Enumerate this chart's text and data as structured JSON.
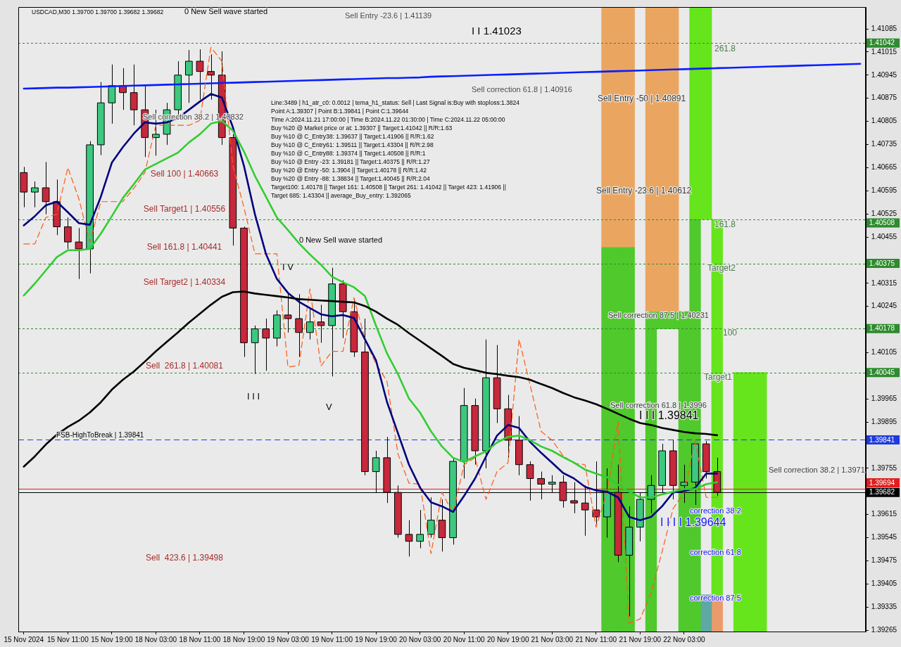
{
  "chart_data": {
    "type": "candlestick",
    "title": "USDCAD,M30 1.39700 1.39700 1.39682 1.39682",
    "categories": [
      "15 Nov 2024",
      null,
      null,
      null,
      "15 Nov 11:00",
      null,
      null,
      null,
      "15 Nov 19:00",
      null,
      null,
      null,
      "18 Nov 03:00",
      null,
      null,
      null,
      "18 Nov 11:00",
      null,
      null,
      null,
      "18 Nov 19:00",
      null,
      null,
      null,
      "19 Nov 03:00",
      null,
      null,
      null,
      "19 Nov 11:00",
      null,
      null,
      null,
      "19 Nov 19:00",
      null,
      null,
      null,
      "20 Nov 03:00",
      null,
      null,
      null,
      "20 Nov 11:00",
      null,
      null,
      null,
      "20 Nov 19:00",
      null,
      null,
      null,
      "21 Nov 03:00",
      null,
      null,
      null,
      "21 Nov 11:00",
      null,
      null,
      null,
      "21 Nov 19:00",
      null,
      null,
      null,
      "22 Nov 03:00",
      null,
      null,
      null,
      null,
      null,
      null,
      null,
      null,
      null,
      null,
      null,
      null,
      null,
      null,
      null,
      null
    ],
    "ohlc": [
      [
        1.4065,
        1.40667,
        1.40545,
        1.40591
      ],
      [
        1.40591,
        1.40623,
        1.40545,
        1.40604
      ],
      [
        1.40604,
        1.40682,
        1.40524,
        1.40562
      ],
      [
        1.40562,
        1.40629,
        1.40461,
        1.40486
      ],
      [
        1.40486,
        1.40514,
        1.40419,
        1.4044
      ],
      [
        1.4044,
        1.40482,
        1.40328,
        1.40419
      ],
      [
        1.40419,
        1.40745,
        1.40345,
        1.40734
      ],
      [
        1.40734,
        1.40924,
        1.40703,
        1.40861
      ],
      [
        1.40861,
        1.40977,
        1.40798,
        1.40913
      ],
      [
        1.40913,
        1.40966,
        1.4084,
        1.40892
      ],
      [
        1.40892,
        1.40977,
        1.40793,
        1.4084
      ],
      [
        1.4084,
        1.40913,
        1.40697,
        1.40756
      ],
      [
        1.40756,
        1.4084,
        1.40701,
        1.40766
      ],
      [
        1.40766,
        1.40861,
        1.40734,
        1.4084
      ],
      [
        1.4084,
        1.40987,
        1.40819,
        1.40945
      ],
      [
        1.40945,
        1.41021,
        1.40861,
        1.40987
      ],
      [
        1.40987,
        1.41023,
        1.40871,
        1.40956
      ],
      [
        1.40956,
        1.41008,
        1.40871,
        1.40945
      ],
      [
        1.40945,
        1.41017,
        1.40734,
        1.40756
      ],
      [
        1.40756,
        1.40766,
        1.40429,
        1.40482
      ],
      [
        1.40482,
        1.40486,
        1.40092,
        1.40135
      ],
      [
        1.40135,
        1.40187,
        1.4004,
        1.40177
      ],
      [
        1.40177,
        1.40208,
        1.4005,
        1.40149
      ],
      [
        1.40149,
        1.40233,
        1.40124,
        1.40219
      ],
      [
        1.40219,
        1.40286,
        1.40166,
        1.40208
      ],
      [
        1.40208,
        1.40282,
        1.40092,
        1.40166
      ],
      [
        1.40166,
        1.4024,
        1.40145,
        1.40198
      ],
      [
        1.40198,
        1.4025,
        1.40135,
        1.40187
      ],
      [
        1.40187,
        1.40362,
        1.40033,
        1.40313
      ],
      [
        1.40313,
        1.40324,
        1.40149,
        1.40229
      ],
      [
        1.40229,
        1.40265,
        1.40092,
        1.40107
      ],
      [
        1.40107,
        1.40208,
        1.39734,
        1.39745
      ],
      [
        1.39745,
        1.39808,
        1.39682,
        1.39787
      ],
      [
        1.39787,
        1.3985,
        1.3965,
        1.39682
      ],
      [
        1.39682,
        1.39703,
        1.39545,
        1.39555
      ],
      [
        1.39555,
        1.39598,
        1.39488,
        1.39534
      ],
      [
        1.39534,
        1.39629,
        1.39513,
        1.39555
      ],
      [
        1.39555,
        1.39667,
        1.39545,
        1.39598
      ],
      [
        1.39598,
        1.39661,
        1.39503,
        1.39545
      ],
      [
        1.39545,
        1.39787,
        1.39524,
        1.39776
      ],
      [
        1.39776,
        1.39998,
        1.39724,
        1.39945
      ],
      [
        1.39945,
        1.39966,
        1.39766,
        1.39808
      ],
      [
        1.39808,
        1.40145,
        1.39755,
        1.40029
      ],
      [
        1.40029,
        1.40128,
        1.39892,
        1.39935
      ],
      [
        1.39935,
        1.39977,
        1.39787,
        1.3984
      ],
      [
        1.3984,
        1.39913,
        1.39734,
        1.39766
      ],
      [
        1.39766,
        1.39776,
        1.39657,
        1.39724
      ],
      [
        1.39724,
        1.39745,
        1.39661,
        1.39707
      ],
      [
        1.39707,
        1.39734,
        1.39682,
        1.39713
      ],
      [
        1.39713,
        1.39734,
        1.39636,
        1.39657
      ],
      [
        1.39657,
        1.39713,
        1.39619,
        1.3965
      ],
      [
        1.3965,
        1.39703,
        1.39551,
        1.39629
      ],
      [
        1.39629,
        1.39776,
        1.39587,
        1.39608
      ],
      [
        1.39608,
        1.39755,
        1.39545,
        1.39682
      ],
      [
        1.39682,
        1.39766,
        1.39471,
        1.39492
      ],
      [
        1.39492,
        1.3964,
        1.39307,
        1.39577
      ],
      [
        1.39577,
        1.39682,
        1.39534,
        1.39661
      ],
      [
        1.39661,
        1.39734,
        1.39619,
        1.39703
      ],
      [
        1.39703,
        1.39829,
        1.39682,
        1.39808
      ],
      [
        1.39808,
        1.39841,
        1.39661,
        1.39703
      ],
      [
        1.39703,
        1.39766,
        1.3965,
        1.39713
      ],
      [
        1.39713,
        1.39833,
        1.39644,
        1.39829
      ],
      [
        1.39829,
        1.39838,
        1.39724,
        1.39745
      ],
      [
        1.39745,
        1.39787,
        1.39671,
        1.39682
      ],
      null,
      null,
      null,
      null,
      null,
      null,
      null,
      null,
      null,
      null,
      null,
      null,
      null
    ],
    "colors": [
      "#c8283c",
      "#3cc97f",
      "#c8283c",
      "#c8283c",
      "#c8283c",
      "#c8283c",
      "#3cc97f",
      "#3cc97f",
      "#3cc97f",
      "#c8283c",
      "#c8283c",
      "#c8283c",
      "#3cc97f",
      "#3cc97f",
      "#3cc97f",
      "#3cc97f",
      "#c8283c",
      "#c8283c",
      "#c8283c",
      "#c8283c",
      "#c8283c",
      "#3cc97f",
      "#c8283c",
      "#3cc97f",
      "#c8283c",
      "#c8283c",
      "#3cc97f",
      "#c8283c",
      "#3cc97f",
      "#c8283c",
      "#c8283c",
      "#c8283c",
      "#3cc97f",
      "#c8283c",
      "#c8283c",
      "#c8283c",
      "#3cc97f",
      "#3cc97f",
      "#c8283c",
      "#3cc97f",
      "#3cc97f",
      "#c8283c",
      "#3cc97f",
      "#c8283c",
      "#c8283c",
      "#c8283c",
      "#c8283c",
      "#c8283c",
      "#3cc97f",
      "#c8283c",
      "#c8283c",
      "#c8283c",
      "#c8283c",
      "#3cc97f",
      "#c8283c",
      "#3cc97f",
      "#3cc97f",
      "#3cc97f",
      "#3cc97f",
      "#c8283c",
      "#3cc97f",
      "#3cc97f",
      "#c8283c",
      "#c8283c",
      null,
      null,
      null,
      null,
      null,
      null,
      null,
      null,
      null,
      null,
      null,
      null,
      null
    ],
    "series": [
      {
        "type": "bar",
        "color": "#eaa661",
        "base": [
          null,
          null,
          null,
          null,
          null,
          null,
          null,
          null,
          null,
          null,
          null,
          null,
          null,
          null,
          null,
          null,
          null,
          null,
          null,
          null,
          null,
          null,
          null,
          null,
          null,
          null,
          null,
          null,
          null,
          null,
          null,
          null,
          null,
          null,
          null,
          null,
          null,
          null,
          null,
          null,
          null,
          null,
          null,
          null,
          null,
          null,
          null,
          null,
          null,
          null,
          null,
          null,
          null,
          1.40425,
          1.40425,
          1.40425,
          null,
          1.40229,
          1.40229,
          1.40229,
          null,
          null,
          null,
          null,
          null,
          null,
          null,
          null,
          null,
          null,
          null,
          null,
          null,
          null,
          null,
          null,
          null
        ],
        "values": [
          null,
          null,
          null,
          null,
          null,
          null,
          null,
          null,
          null,
          null,
          null,
          null,
          null,
          null,
          null,
          null,
          null,
          null,
          null,
          null,
          null,
          null,
          null,
          null,
          null,
          null,
          null,
          null,
          null,
          null,
          null,
          null,
          null,
          null,
          null,
          null,
          null,
          null,
          null,
          null,
          null,
          null,
          null,
          null,
          null,
          null,
          null,
          null,
          null,
          null,
          null,
          null,
          null,
          0.00726,
          0.00726,
          0.00726,
          null,
          0.00922,
          0.00922,
          0.00922,
          null,
          null,
          null,
          null,
          null,
          null,
          null,
          null,
          null,
          null,
          null,
          null,
          null,
          null,
          null,
          null,
          null
        ]
      },
      {
        "type": "bar",
        "color": "#4fc92b",
        "base": [
          null,
          null,
          null,
          null,
          null,
          null,
          null,
          null,
          null,
          null,
          null,
          null,
          null,
          null,
          null,
          null,
          null,
          null,
          null,
          null,
          null,
          null,
          null,
          null,
          null,
          null,
          null,
          null,
          null,
          null,
          null,
          null,
          null,
          null,
          null,
          null,
          null,
          null,
          null,
          null,
          null,
          null,
          null,
          null,
          null,
          null,
          null,
          null,
          null,
          null,
          null,
          null,
          null,
          1.39261,
          1.39261,
          1.39261,
          null,
          1.39261,
          1.40177,
          1.40177,
          1.39261,
          1.39261,
          null,
          null,
          null,
          null,
          null,
          null,
          null,
          null,
          null,
          null,
          null,
          null,
          null,
          null,
          null
        ],
        "values": [
          null,
          null,
          null,
          null,
          null,
          null,
          null,
          null,
          null,
          null,
          null,
          null,
          null,
          null,
          null,
          null,
          null,
          null,
          null,
          null,
          null,
          null,
          null,
          null,
          null,
          null,
          null,
          null,
          null,
          null,
          null,
          null,
          null,
          null,
          null,
          null,
          null,
          null,
          null,
          null,
          null,
          null,
          null,
          null,
          null,
          null,
          null,
          null,
          null,
          null,
          null,
          null,
          null,
          0.01164,
          0.01164,
          0.01164,
          null,
          0.00968,
          0.00052,
          0.00052,
          0.00968,
          0.01247,
          null,
          null,
          null,
          null,
          null,
          null,
          null,
          null,
          null,
          null,
          null,
          null,
          null,
          null,
          null
        ]
      },
      {
        "type": "bar",
        "color": "#66e41c",
        "base": [
          null,
          null,
          null,
          null,
          null,
          null,
          null,
          null,
          null,
          null,
          null,
          null,
          null,
          null,
          null,
          null,
          null,
          null,
          null,
          null,
          null,
          null,
          null,
          null,
          null,
          null,
          null,
          null,
          null,
          null,
          null,
          null,
          null,
          null,
          null,
          null,
          null,
          null,
          null,
          null,
          null,
          null,
          null,
          null,
          null,
          null,
          null,
          null,
          null,
          null,
          null,
          null,
          null,
          null,
          null,
          null,
          null,
          null,
          null,
          null,
          null,
          1.40508,
          1.40508,
          1.39372,
          null,
          1.39261,
          1.39261,
          1.39261,
          null,
          null,
          null,
          null,
          null,
          null,
          null,
          null,
          null
        ],
        "values": [
          null,
          null,
          null,
          null,
          null,
          null,
          null,
          null,
          null,
          null,
          null,
          null,
          null,
          null,
          null,
          null,
          null,
          null,
          null,
          null,
          null,
          null,
          null,
          null,
          null,
          null,
          null,
          null,
          null,
          null,
          null,
          null,
          null,
          null,
          null,
          null,
          null,
          null,
          null,
          null,
          null,
          null,
          null,
          null,
          null,
          null,
          null,
          null,
          null,
          null,
          null,
          null,
          null,
          null,
          null,
          null,
          null,
          null,
          null,
          null,
          null,
          0.00643,
          0.00643,
          0.01136,
          null,
          0.00784,
          0.00784,
          0.00784,
          null,
          null,
          null,
          null,
          null,
          null,
          null,
          null,
          null
        ]
      },
      {
        "type": "bar",
        "color": "#5fa8a3",
        "base": [
          null,
          null,
          null,
          null,
          null,
          null,
          null,
          null,
          null,
          null,
          null,
          null,
          null,
          null,
          null,
          null,
          null,
          null,
          null,
          null,
          null,
          null,
          null,
          null,
          null,
          null,
          null,
          null,
          null,
          null,
          null,
          null,
          null,
          null,
          null,
          null,
          null,
          null,
          null,
          null,
          null,
          null,
          null,
          null,
          null,
          null,
          null,
          null,
          null,
          null,
          null,
          null,
          null,
          null,
          null,
          null,
          null,
          null,
          null,
          null,
          null,
          null,
          1.39261,
          null,
          null,
          null,
          null,
          null,
          null,
          null,
          null,
          null,
          null,
          null,
          null,
          null,
          null
        ],
        "values": [
          null,
          null,
          null,
          null,
          null,
          null,
          null,
          null,
          null,
          null,
          null,
          null,
          null,
          null,
          null,
          null,
          null,
          null,
          null,
          null,
          null,
          null,
          null,
          null,
          null,
          null,
          null,
          null,
          null,
          null,
          null,
          null,
          null,
          null,
          null,
          null,
          null,
          null,
          null,
          null,
          null,
          null,
          null,
          null,
          null,
          null,
          null,
          null,
          null,
          null,
          null,
          null,
          null,
          null,
          null,
          null,
          null,
          null,
          null,
          null,
          null,
          null,
          0.00111,
          null,
          null,
          null,
          null,
          null,
          null,
          null,
          null,
          null,
          null,
          null,
          null,
          null,
          null
        ]
      },
      {
        "type": "bar",
        "color": "#eb9b6b",
        "base": [
          null,
          null,
          null,
          null,
          null,
          null,
          null,
          null,
          null,
          null,
          null,
          null,
          null,
          null,
          null,
          null,
          null,
          null,
          null,
          null,
          null,
          null,
          null,
          null,
          null,
          null,
          null,
          null,
          null,
          null,
          null,
          null,
          null,
          null,
          null,
          null,
          null,
          null,
          null,
          null,
          null,
          null,
          null,
          null,
          null,
          null,
          null,
          null,
          null,
          null,
          null,
          null,
          null,
          null,
          null,
          null,
          null,
          null,
          null,
          null,
          null,
          null,
          null,
          1.39261,
          null,
          null,
          null,
          null,
          null,
          null,
          null,
          null,
          null,
          null,
          null,
          null,
          null
        ],
        "values": [
          null,
          null,
          null,
          null,
          null,
          null,
          null,
          null,
          null,
          null,
          null,
          null,
          null,
          null,
          null,
          null,
          null,
          null,
          null,
          null,
          null,
          null,
          null,
          null,
          null,
          null,
          null,
          null,
          null,
          null,
          null,
          null,
          null,
          null,
          null,
          null,
          null,
          null,
          null,
          null,
          null,
          null,
          null,
          null,
          null,
          null,
          null,
          null,
          null,
          null,
          null,
          null,
          null,
          null,
          null,
          null,
          null,
          null,
          null,
          null,
          null,
          null,
          null,
          0.00111,
          null,
          null,
          null,
          null,
          null,
          null,
          null,
          null,
          null,
          null,
          null,
          null,
          null
        ]
      },
      {
        "type": "line",
        "color": "#000000",
        "values": [
          1.3976,
          1.39791,
          1.39827,
          1.39857,
          1.3988,
          1.39899,
          1.39924,
          1.39955,
          1.39993,
          1.40023,
          1.40048,
          1.40078,
          1.40109,
          1.40138,
          1.40166,
          1.40196,
          1.40223,
          1.4025,
          1.40274,
          1.40288,
          1.4029,
          1.40284,
          1.4028,
          1.40276,
          1.40272,
          1.40267,
          1.40265,
          1.40263,
          1.40261,
          1.40259,
          1.40257,
          1.40246,
          1.40229,
          1.40208,
          1.40189,
          1.40164,
          1.40141,
          1.40118,
          1.40095,
          1.40071,
          1.40059,
          1.40052,
          1.40044,
          1.4004,
          1.40035,
          1.40031,
          1.40023,
          1.4001,
          1.39998,
          1.39983,
          1.3997,
          1.3996,
          1.39949,
          1.39935,
          1.3992,
          1.39905,
          1.39892,
          1.39886,
          1.39877,
          1.39871,
          1.39865,
          1.39861,
          1.39859,
          1.39855,
          null,
          null,
          null,
          null,
          null,
          null,
          null,
          null,
          null,
          null,
          null,
          null,
          null
        ]
      },
      {
        "type": "line",
        "color": "#32cd32",
        "values": [
          1.40278,
          1.40314,
          1.40354,
          1.40394,
          1.40415,
          1.40415,
          1.40419,
          1.40465,
          1.40518,
          1.40573,
          1.40615,
          1.40659,
          1.40676,
          1.40693,
          1.4071,
          1.40741,
          1.40766,
          1.40798,
          1.40806,
          1.40777,
          1.40714,
          1.4064,
          1.40577,
          1.40514,
          1.40476,
          1.40436,
          1.40402,
          1.40371,
          1.40335,
          1.40318,
          1.40303,
          1.40276,
          1.40187,
          1.40103,
          1.4004,
          1.39966,
          1.39924,
          1.39867,
          1.39821,
          1.39787,
          1.39774,
          1.39791,
          1.39806,
          1.39833,
          1.3985,
          1.39854,
          1.3984,
          1.39821,
          1.39808,
          1.39789,
          1.39772,
          1.39751,
          1.39739,
          1.39728,
          1.39705,
          1.39684,
          1.39667,
          1.39667,
          1.39676,
          1.39684,
          1.39692,
          1.39692,
          1.39707,
          1.39713,
          null,
          null,
          null,
          null,
          null,
          null,
          null,
          null,
          null,
          null,
          null,
          null,
          null
        ]
      },
      {
        "type": "line",
        "color": "#000080",
        "values": [
          1.4049,
          1.40518,
          1.40551,
          1.40562,
          1.4053,
          1.40497,
          1.40492,
          1.40577,
          1.4068,
          1.40727,
          1.40768,
          1.40802,
          1.40798,
          1.40802,
          1.40815,
          1.4084,
          1.40865,
          1.40888,
          1.40877,
          1.40787,
          1.40671,
          1.40524,
          1.40404,
          1.40328,
          1.40286,
          1.40259,
          1.4024,
          1.40221,
          1.40215,
          1.40219,
          1.4021,
          1.40145,
          1.40082,
          1.39956,
          1.39861,
          1.39766,
          1.39697,
          1.39652,
          1.3964,
          1.39623,
          1.39671,
          1.39724,
          1.39791,
          1.39854,
          1.39886,
          1.39877,
          1.39835,
          1.39802,
          1.39772,
          1.39741,
          1.39724,
          1.39699,
          1.39688,
          1.39684,
          1.39667,
          1.39608,
          1.39598,
          1.39608,
          1.3964,
          1.39682,
          1.39686,
          1.39695,
          1.39739,
          1.39739,
          null,
          null,
          null,
          null,
          null,
          null,
          null,
          null,
          null,
          null,
          null,
          null,
          null
        ]
      },
      {
        "type": "line",
        "color": "#ff5a14",
        "line_style": "dashed",
        "values": [
          1.40434,
          1.40434,
          1.40514,
          1.40524,
          1.40665,
          1.40571,
          1.4044,
          1.40562,
          1.40562,
          1.40562,
          1.40602,
          1.4065,
          1.40793,
          1.40793,
          1.40793,
          1.40793,
          1.40808,
          1.41029,
          1.40987,
          1.40671,
          1.40545,
          1.40404,
          1.40404,
          1.40404,
          1.40061,
          1.40067,
          1.40298,
          1.40065,
          1.40109,
          1.40109,
          1.40271,
          1.40145,
          1.40071,
          1.40019,
          1.39798,
          1.3971,
          1.39707,
          1.39497,
          1.39682,
          1.39619,
          1.39766,
          1.39787,
          1.39661,
          1.39745,
          1.39772,
          1.40145,
          1.40008,
          1.39867,
          1.3984,
          1.39793,
          1.3977,
          1.39766,
          1.39577,
          1.39682,
          1.39896,
          1.39286,
          1.39299,
          1.39377,
          1.39503,
          1.39633,
          1.39682,
          1.3984,
          1.39667,
          1.39667,
          null,
          null,
          null,
          null,
          null,
          null,
          null,
          null,
          null,
          null,
          null,
          null,
          null
        ]
      },
      {
        "type": "line",
        "color": "#0a1eff",
        "values": [
          1.40904,
          1.40905,
          1.40906,
          1.40907,
          1.40907,
          1.40908,
          1.40909,
          1.4091,
          1.40911,
          1.40912,
          1.40913,
          1.40914,
          1.40915,
          1.40916,
          1.40917,
          1.40918,
          1.40919,
          1.4092,
          1.40921,
          1.40922,
          1.40923,
          1.40924,
          1.40925,
          1.40926,
          1.40927,
          1.40928,
          1.40929,
          1.4093,
          1.40931,
          1.40932,
          1.40933,
          1.40934,
          1.40935,
          1.40936,
          1.40936,
          1.40937,
          1.40938,
          1.4094,
          1.40941,
          1.40942,
          1.40943,
          1.40944,
          1.40945,
          1.40946,
          1.40947,
          1.40948,
          1.40949,
          1.4095,
          1.40951,
          1.40952,
          1.40953,
          1.40954,
          1.40955,
          1.40956,
          1.40957,
          1.40958,
          1.40959,
          1.4096,
          1.40961,
          1.40962,
          1.40963,
          1.40964,
          1.40965,
          1.40966,
          1.40967,
          1.40968,
          1.40969,
          1.4097,
          1.40971,
          1.40972,
          1.40973,
          1.40974,
          1.40975,
          1.40976,
          1.40977,
          1.40978,
          1.40979
        ]
      }
    ],
    "ref_lines": [
      {
        "axis": "y",
        "value": 1.41042,
        "label": "1.41042",
        "color": "#2e8b2e",
        "line_style": "dotted"
      },
      {
        "axis": "y",
        "value": 1.40508,
        "label": "1.40508",
        "color": "#2e8b2e",
        "line_style": "dotted"
      },
      {
        "axis": "y",
        "value": 1.40375,
        "label": "1.40375",
        "color": "#2e8b2e",
        "line_style": "dotted"
      },
      {
        "axis": "y",
        "value": 1.40178,
        "label": "1.40178",
        "color": "#2e8b2e",
        "line_style": "dotted"
      },
      {
        "axis": "y",
        "value": 1.40045,
        "label": "1.40045",
        "color": "#2e8b2e",
        "line_style": "dotted"
      },
      {
        "axis": "y",
        "value": 1.39841,
        "label": "1.39841",
        "color": "#1e3cdc",
        "line_style": "dashed"
      },
      {
        "axis": "y",
        "value": 1.39694,
        "label": "1.39694",
        "color": "#e01e1e"
      },
      {
        "axis": "y",
        "value": 1.39682,
        "label": "1.39682",
        "color": "#000000"
      }
    ],
    "annotations": [
      "Line:3489 | h1_atr_c0: 0.0012 | tema_h1_status: Sell | Last Signal is:Buy with stoploss:1.3824",
      "Point A:1.39307 | Point B:1.39841 | Point C:1.39644",
      "Time A:2024.11.21 17:00:00 | Time B:2024.11.22 01:30:00 | Time C:2024.11.22 05:00:00",
      "Buy %20 @ Market price or at: 1.39307 || Target:1.41042 || R/R:1.63",
      "Buy %10 @ C_Entry38: 1.39637 || Target:1.41906 || R/R:1.62",
      "Buy %10 @ C_Entry61: 1.39511 || Target:1.43304 || R/R:2.98",
      "Buy %10 @ C_Entry88: 1.39374 || Target:1.40508 || R/R:1",
      "Buy %10 @ Entry -23: 1.39181 || Target:1.40375 || R/R:1.27",
      "Buy %20 @ Entry -50: 1.3904 || Target:1.40178 || R/R:1.42",
      "Buy %20 @ Entry -88: 1.38834 || Target:1.40045 || R/R:2.04",
      "Target100: 1.40178 || Target 161: 1.40508 || Target 261: 1.41042 || Target 423: 1.41906 || Target 685: 1.43304 || average_Buy_entry: 1.392065",
      "0 New Sell wave started",
      "Sell Entry -23.6 | 1.41139",
      "I I 1.41023",
      "Sell correction 61.8 | 1.40916",
      "Sell correction 38.2 | 1.40832",
      "Sell 100 | 1.40663",
      "Sell Target1 | 1.40556",
      "Sell 161.8 | 1.40441",
      "Sell Target2 | 1.40334",
      "Sell  261.8 | 1.40081",
      "Sell  423.6 | 1.39498",
      "0 New Sell wave started",
      "I V",
      "I I I",
      "V",
      {
        "text": "FSB-HighToBreak | 1.39841",
        "y": 1.39841
      },
      "Sell Entry -50 | 1.40891",
      "Sell Entry -23.6 | 1.40612",
      "Sell correction 87.5 | 1.40231",
      "Sell correction 61.8 | 1.3996",
      {
        "text": "I I I 1.39841",
        "y": 1.39841
      },
      "Sell correction 38.2 | 1.3971",
      {
        "text": "I I I I 1.39644",
        "y": 1.39644
      },
      "correction 38.2",
      "correction 61.8",
      "correction 87.5",
      {
        "text": "261.8",
        "y": 1.41042
      },
      {
        "text": "161.8",
        "y": 1.40508
      },
      {
        "text": "Target2",
        "y": 1.40375
      },
      {
        "text": "100",
        "y": 1.40178
      },
      {
        "text": "Target1",
        "y": 1.40045
      }
    ],
    "ylim": [
      1.39261,
      1.41151
    ],
    "yticks": [
      1.39265,
      1.39335,
      1.39405,
      1.39475,
      1.39545,
      1.39615,
      1.39755,
      1.39895,
      1.39965,
      1.40105,
      1.40245,
      1.40315,
      1.40455,
      1.40525,
      1.40595,
      1.40665,
      1.40735,
      1.40805,
      1.40875,
      1.40945,
      1.41015,
      1.41085
    ]
  }
}
